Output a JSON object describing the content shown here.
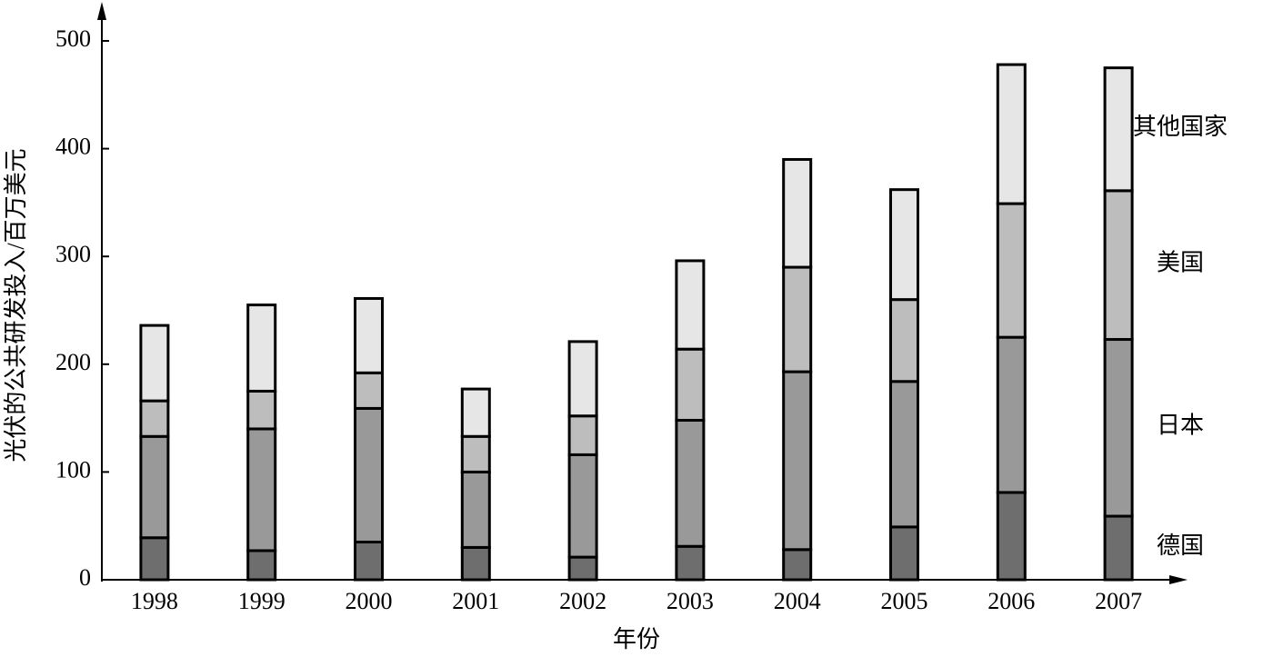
{
  "chart_data": {
    "type": "stacked-bar",
    "y_label": "光伏的公共研发投入/百万美元",
    "x_label": "年份",
    "categories": [
      "1998",
      "1999",
      "2000",
      "2001",
      "2002",
      "2003",
      "2004",
      "2005",
      "2006",
      "2007"
    ],
    "series": [
      {
        "name": "德国",
        "color": "#6e6e6e",
        "values": [
          39,
          27,
          35,
          30,
          21,
          31,
          28,
          49,
          81,
          59
        ]
      },
      {
        "name": "日本",
        "color": "#999999",
        "values": [
          94,
          113,
          124,
          70,
          95,
          117,
          165,
          135,
          144,
          164
        ]
      },
      {
        "name": "美国",
        "color": "#bdbdbd",
        "values": [
          33,
          35,
          33,
          33,
          36,
          66,
          97,
          76,
          124,
          138
        ]
      },
      {
        "name": "其他国家",
        "color": "#e6e6e6",
        "values": [
          70,
          80,
          69,
          44,
          69,
          82,
          100,
          102,
          129,
          114
        ]
      }
    ],
    "ylim": [
      0,
      500
    ],
    "yticks": [
      0,
      100,
      200,
      300,
      400,
      500
    ]
  }
}
